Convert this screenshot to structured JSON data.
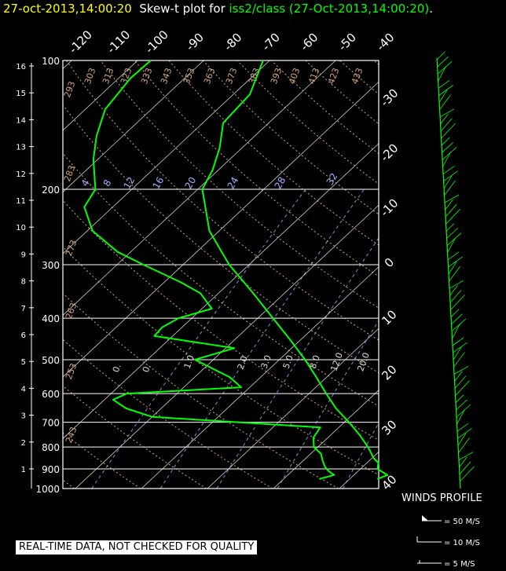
{
  "title": {
    "datetime": "27-oct-2013,14:00:20",
    "plot_label": "Skew-t plot for",
    "source": "iss2/class (27-Oct-2013,14:00:20)",
    "suffix": "."
  },
  "qc_notice": "REAL-TIME DATA, NOT CHECKED FOR QUALITY",
  "winds_profile": {
    "label": "WINDS PROFILE",
    "legend": [
      "= 50 M/S",
      "= 10 M/S",
      "= 5 M/S"
    ]
  },
  "colors": {
    "background": "#000000",
    "sounding": "#00ff00",
    "grid": "#ffffff",
    "isohume": "#a0b0ff",
    "dry_adiabat": "#d2a679"
  },
  "chart_data": {
    "type": "skew-t",
    "pressure_axis": {
      "levels_hPa": [
        100,
        200,
        300,
        400,
        500,
        600,
        700,
        800,
        900,
        1000
      ],
      "scale": "log",
      "range": [
        1000,
        100
      ]
    },
    "height_axis_km": {
      "labels": [
        "16",
        "15",
        "14",
        "13",
        "12",
        "11",
        "10",
        "9",
        "8",
        "7",
        "6",
        "5",
        "4",
        "3",
        "2",
        "1"
      ]
    },
    "temperature_labels_top_C": [
      "-120",
      "-110",
      "-100",
      "-90",
      "-80",
      "-70",
      "-60",
      "-50",
      "-40"
    ],
    "temperature_labels_right_C": [
      "-30",
      "-20",
      "-10",
      "0",
      "10",
      "20",
      "30",
      "40"
    ],
    "dry_adiabat_labels_K": [
      "293",
      "303",
      "313",
      "323",
      "333",
      "343",
      "353",
      "363",
      "373",
      "383",
      "393",
      "403",
      "413",
      "423",
      "433",
      "283",
      "273",
      "263",
      "253",
      "243"
    ],
    "mixing_ratio_labels_gkg": [
      "4",
      "8",
      "12",
      "16",
      "20",
      "24",
      "28",
      "32"
    ],
    "lower_labels": [
      "0.",
      "0.",
      "1.0",
      "2.0",
      "3.0",
      "5.0",
      "8.0",
      "12.0",
      "20.0"
    ],
    "temperature_profile": [
      {
        "p": 950,
        "t": 14.2
      },
      {
        "p": 930,
        "t": 15.1
      },
      {
        "p": 900,
        "t": 12.6
      },
      {
        "p": 870,
        "t": 11.7
      },
      {
        "p": 850,
        "t": 10.3
      },
      {
        "p": 800,
        "t": 7.6
      },
      {
        "p": 750,
        "t": 4.4
      },
      {
        "p": 700,
        "t": 0.7
      },
      {
        "p": 650,
        "t": -3.5
      },
      {
        "p": 600,
        "t": -7.4
      },
      {
        "p": 550,
        "t": -11.5
      },
      {
        "p": 500,
        "t": -16.1
      },
      {
        "p": 450,
        "t": -21.5
      },
      {
        "p": 400,
        "t": -27.7
      },
      {
        "p": 350,
        "t": -34.7
      },
      {
        "p": 300,
        "t": -43.0
      },
      {
        "p": 250,
        "t": -51.5
      },
      {
        "p": 200,
        "t": -59.3
      },
      {
        "p": 180,
        "t": -60.9
      },
      {
        "p": 160,
        "t": -63.4
      },
      {
        "p": 140,
        "t": -66.9
      },
      {
        "p": 120,
        "t": -67.5
      },
      {
        "p": 100,
        "t": -71.0
      }
    ],
    "dewpoint_profile": [
      {
        "p": 950,
        "td": 5.4
      },
      {
        "p": 930,
        "td": 7.0
      },
      {
        "p": 910,
        "td": 5.5
      },
      {
        "p": 890,
        "td": 4.3
      },
      {
        "p": 860,
        "td": 2.9
      },
      {
        "p": 830,
        "td": 1.6
      },
      {
        "p": 800,
        "td": -0.6
      },
      {
        "p": 760,
        "td": -2.2
      },
      {
        "p": 720,
        "td": -2.8
      },
      {
        "p": 680,
        "td": -30.0
      },
      {
        "p": 650,
        "td": -35.3
      },
      {
        "p": 620,
        "td": -38.7
      },
      {
        "p": 600,
        "td": -37.6
      },
      {
        "p": 580,
        "td": -21.3
      },
      {
        "p": 550,
        "td": -24.6
      },
      {
        "p": 500,
        "td": -32.8
      },
      {
        "p": 470,
        "td": -28.7
      },
      {
        "p": 440,
        "td": -42.8
      },
      {
        "p": 420,
        "td": -43.0
      },
      {
        "p": 400,
        "td": -42.0
      },
      {
        "p": 380,
        "td": -38.5
      },
      {
        "p": 350,
        "td": -42.7
      },
      {
        "p": 330,
        "td": -47.4
      },
      {
        "p": 300,
        "td": -56.0
      },
      {
        "p": 280,
        "td": -62.0
      },
      {
        "p": 250,
        "td": -69.2
      },
      {
        "p": 220,
        "td": -74.3
      },
      {
        "p": 200,
        "td": -75.5
      },
      {
        "p": 170,
        "td": -80.7
      },
      {
        "p": 150,
        "td": -84.0
      },
      {
        "p": 130,
        "td": -87.0
      },
      {
        "p": 110,
        "td": -88.2
      },
      {
        "p": 100,
        "td": -88.0
      }
    ]
  }
}
